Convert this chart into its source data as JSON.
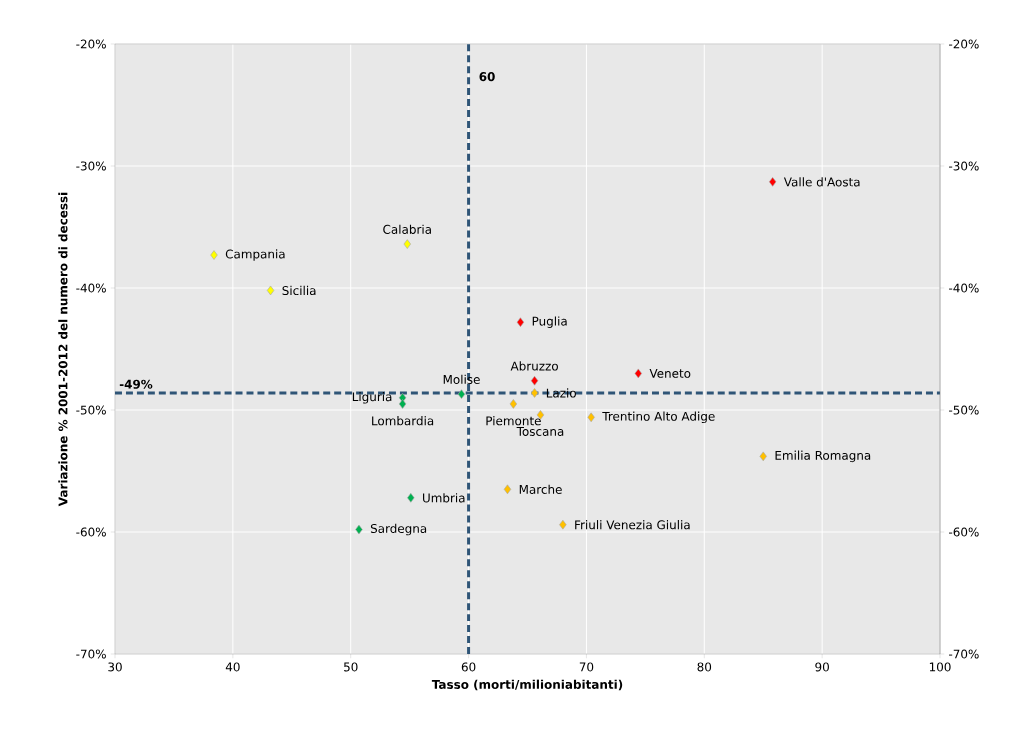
{
  "chart_data": {
    "type": "scatter",
    "xlabel": "Tasso (morti/milioniabitanti)",
    "ylabel": "Variazione % 2001-2012 del numero di decessi",
    "marker": "diamond",
    "grid": true,
    "xlim": [
      30,
      100
    ],
    "xticks": [
      30,
      40,
      50,
      60,
      70,
      80,
      90,
      100
    ],
    "ylim": [
      -70,
      -20
    ],
    "yticks": [
      {
        "value": -70,
        "label": "-70%"
      },
      {
        "value": -60,
        "label": "-60%"
      },
      {
        "value": -50,
        "label": "-50%"
      },
      {
        "value": -40,
        "label": "-40%"
      },
      {
        "value": -30,
        "label": "-30%"
      },
      {
        "value": -20,
        "label": "-20%"
      }
    ],
    "y2lim": [
      -70,
      -20
    ],
    "y2ticks": [
      {
        "value": -70,
        "label": "-70%"
      },
      {
        "value": -60,
        "label": "-60%"
      },
      {
        "value": -50,
        "label": "-50%"
      },
      {
        "value": -40,
        "label": "-40%"
      },
      {
        "value": -30,
        "label": "-30%"
      },
      {
        "value": -20,
        "label": "-20%"
      }
    ],
    "series": [
      {
        "color": "#ff0000",
        "x": [
          85.8,
          64.4,
          74.4,
          65.6
        ],
        "values": [
          -31.3,
          -42.8,
          -47.0,
          -47.6
        ]
      },
      {
        "color": "#ffff00",
        "x": [
          38.4,
          54.8,
          43.2
        ],
        "values": [
          -37.3,
          -36.4,
          -40.2
        ]
      },
      {
        "color": "#ffc000",
        "x": [
          65.6,
          63.8,
          66.1,
          70.4,
          85.0,
          63.3,
          68.0
        ],
        "values": [
          -48.6,
          -49.5,
          -50.4,
          -50.6,
          -53.8,
          -56.5,
          -59.4
        ]
      },
      {
        "color": "#00b050",
        "x": [
          59.4,
          54.4,
          54.4,
          55.1,
          50.7
        ],
        "values": [
          -48.7,
          -49.0,
          -49.5,
          -57.2,
          -59.8
        ]
      }
    ],
    "ref_lines": [
      {
        "axis": "x",
        "value": 60,
        "label": "60",
        "color": "#2f5577",
        "line_style": "dashed"
      },
      {
        "axis": "y",
        "value": -48.6,
        "label": "-49%",
        "color": "#2f5577",
        "line_style": "dashed"
      }
    ],
    "annotations": [
      {
        "text": "Valle d'Aosta",
        "x": 85.8,
        "y": -31.3
      },
      {
        "text": "Campania",
        "x": 38.4,
        "y": -37.3
      },
      {
        "text": "Calabria",
        "x": 54.8,
        "y": -36.4
      },
      {
        "text": "Sicilia",
        "x": 43.2,
        "y": -40.2
      },
      {
        "text": "Puglia",
        "x": 64.4,
        "y": -42.8
      },
      {
        "text": "Veneto",
        "x": 74.4,
        "y": -47.0
      },
      {
        "text": "Abruzzo",
        "x": 65.6,
        "y": -47.6
      },
      {
        "text": "Lazio",
        "x": 65.6,
        "y": -48.6
      },
      {
        "text": "Molise",
        "x": 59.4,
        "y": -48.7
      },
      {
        "text": "Liguria",
        "x": 54.4,
        "y": -49.0
      },
      {
        "text": "Lombardia",
        "x": 54.4,
        "y": -49.5
      },
      {
        "text": "Piemonte",
        "x": 63.8,
        "y": -49.5
      },
      {
        "text": "Toscana",
        "x": 66.1,
        "y": -50.4
      },
      {
        "text": "Trentino Alto Adige",
        "x": 70.4,
        "y": -50.6
      },
      {
        "text": "Emilia Romagna",
        "x": 85.0,
        "y": -53.8
      },
      {
        "text": "Marche",
        "x": 63.3,
        "y": -56.5
      },
      {
        "text": "Umbria",
        "x": 55.1,
        "y": -57.2
      },
      {
        "text": "Friuli Venezia Giulia",
        "x": 68.0,
        "y": -59.4
      },
      {
        "text": "Sardegna",
        "x": 50.7,
        "y": -59.8
      }
    ]
  }
}
